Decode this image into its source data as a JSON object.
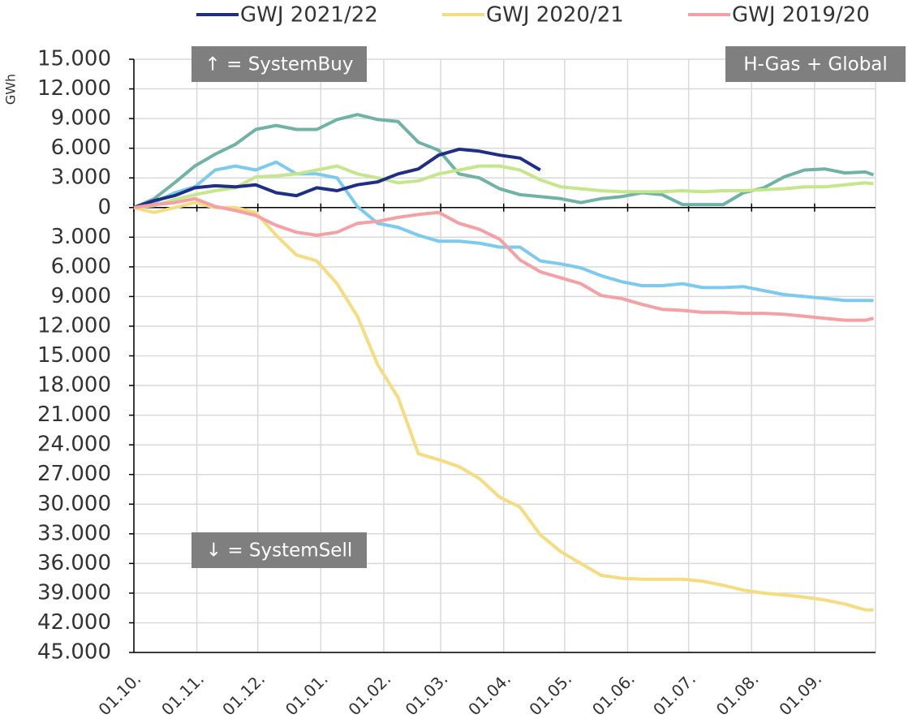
{
  "chart_data": {
    "type": "line",
    "y_axis_label": "GWh",
    "annotations": [
      "↑ = SystemBuy",
      "↓ = SystemSell",
      "H-Gas + Global"
    ],
    "x": [
      0,
      10,
      20,
      30,
      40,
      50,
      60,
      70,
      80,
      90,
      100,
      110,
      120,
      130,
      140,
      150,
      160,
      170,
      180,
      190,
      200,
      210,
      220,
      230,
      240,
      250,
      260,
      270,
      280,
      290,
      300,
      310,
      320,
      330,
      340,
      350,
      360,
      364
    ],
    "xlim": [
      0,
      365
    ],
    "xticks": [
      {
        "value": 0,
        "label": "01.10."
      },
      {
        "value": 31,
        "label": "01.11."
      },
      {
        "value": 61,
        "label": "01.12."
      },
      {
        "value": 92,
        "label": "01.01."
      },
      {
        "value": 123,
        "label": "01.02."
      },
      {
        "value": 151,
        "label": "01.03."
      },
      {
        "value": 182,
        "label": "01.04."
      },
      {
        "value": 212,
        "label": "01.05."
      },
      {
        "value": 243,
        "label": "01.06."
      },
      {
        "value": 273,
        "label": "01.07."
      },
      {
        "value": 304,
        "label": "01.08."
      },
      {
        "value": 335,
        "label": "01.09."
      }
    ],
    "ylim": [
      -45000,
      15000
    ],
    "yticks": [
      {
        "value": 15000,
        "label": "15.000"
      },
      {
        "value": 12000,
        "label": "12.000"
      },
      {
        "value": 9000,
        "label": "9.000"
      },
      {
        "value": 6000,
        "label": "6.000"
      },
      {
        "value": 3000,
        "label": "3.000"
      },
      0,
      {
        "value": -3000,
        "label": "3.000"
      },
      {
        "value": -6000,
        "label": "6.000"
      },
      {
        "value": -9000,
        "label": "9.000"
      },
      {
        "value": -12000,
        "label": "12.000"
      },
      {
        "value": -15000,
        "label": "15.000"
      },
      {
        "value": -18000,
        "label": "18.000"
      },
      {
        "value": -21000,
        "label": "21.000"
      },
      {
        "value": -24000,
        "label": "24.000"
      },
      {
        "value": -27000,
        "label": "27.000"
      },
      {
        "value": -30000,
        "label": "30.000"
      },
      {
        "value": -33000,
        "label": "33.000"
      },
      {
        "value": -36000,
        "label": "36.000"
      },
      {
        "value": -39000,
        "label": "39.000"
      },
      {
        "value": -42000,
        "label": "42.000"
      },
      {
        "value": -45000,
        "label": "45.000"
      }
    ],
    "grid": true,
    "series": [
      {
        "color": "#6fb3a6",
        "values": [
          0,
          900,
          2500,
          4200,
          5400,
          6400,
          7900,
          8300,
          7900,
          7900,
          8900,
          9400,
          8900,
          8700,
          6600,
          5800,
          3400,
          3000,
          1900,
          1300,
          1100,
          900,
          500,
          900,
          1100,
          1500,
          1300,
          300,
          300,
          300,
          1500,
          2000,
          3100,
          3800,
          3900,
          3500,
          3600,
          3300
        ]
      },
      {
        "color": "#7ccbef",
        "values": [
          0,
          500,
          1500,
          2100,
          3800,
          4200,
          3800,
          4600,
          3400,
          3400,
          3000,
          100,
          -1600,
          -2000,
          -2800,
          -3400,
          -3400,
          -3600,
          -4000,
          -4000,
          -5400,
          -5700,
          -6100,
          -6900,
          -7500,
          -7900,
          -7900,
          -7700,
          -8100,
          -8100,
          -8000,
          -8400,
          -8800,
          -9000,
          -9200,
          -9400,
          -9400,
          -9400
        ]
      },
      {
        "color": "#c5e68a",
        "values": [
          0,
          200,
          800,
          1300,
          1700,
          2000,
          3100,
          3200,
          3400,
          3800,
          4200,
          3400,
          3000,
          2500,
          2700,
          3400,
          3800,
          4200,
          4200,
          3800,
          2800,
          2100,
          1900,
          1700,
          1600,
          1600,
          1600,
          1700,
          1600,
          1700,
          1700,
          1800,
          1900,
          2100,
          2100,
          2300,
          2500,
          2400
        ]
      },
      {
        "name": "GWJ 2021/22",
        "color": "#1f2f86",
        "values": [
          0,
          700,
          1200,
          2000,
          2200,
          2100,
          2300,
          1500,
          1200,
          2000,
          1700,
          2300,
          2600,
          3400,
          3900,
          5300,
          5900,
          5700,
          5300,
          5000,
          3800,
          null,
          null,
          null,
          null,
          null,
          null,
          null,
          null,
          null,
          null,
          null,
          null,
          null,
          null,
          null,
          null,
          null
        ]
      },
      {
        "name": "GWJ 2020/21",
        "color": "#f5dc7f",
        "values": [
          0,
          -500,
          0,
          500,
          0,
          0,
          -500,
          -2800,
          -4800,
          -5400,
          -7700,
          -11000,
          -15900,
          -19200,
          -24900,
          -25500,
          -26200,
          -27400,
          -29300,
          -30300,
          -33100,
          -34800,
          -36000,
          -37200,
          -37500,
          -37600,
          -37600,
          -37600,
          -37800,
          -38200,
          -38700,
          -39000,
          -39200,
          -39400,
          -39700,
          -40100,
          -40700,
          -40700
        ]
      },
      {
        "name": "GWJ 2019/20",
        "color": "#f4a0a5",
        "values": [
          0,
          300,
          500,
          900,
          100,
          -300,
          -800,
          -1800,
          -2500,
          -2800,
          -2500,
          -1600,
          -1400,
          -1000,
          -700,
          -500,
          -1600,
          -2200,
          -3200,
          -5300,
          -6500,
          -7100,
          -7700,
          -8900,
          -9200,
          -9800,
          -10300,
          -10400,
          -10600,
          -10600,
          -10700,
          -10700,
          -10800,
          -11000,
          -11200,
          -11400,
          -11400,
          -11200
        ]
      }
    ]
  }
}
